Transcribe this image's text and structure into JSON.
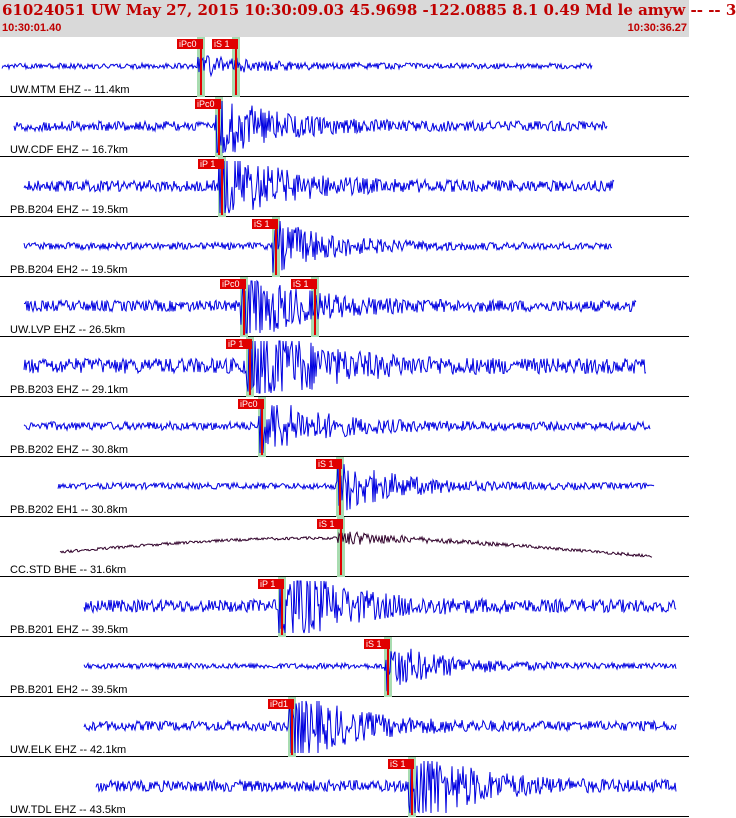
{
  "header": {
    "title": "61024051 UW May 27, 2015 10:30:09.03   45.9698 -122.0885  8.1 0.49 Md le amyw -- --    3",
    "start_time": "10:30:01.40",
    "end_time": "10:30:36.27"
  },
  "colors": {
    "trace": "#0000e0",
    "trace_alt": "#30002a",
    "pick": "#e00000",
    "window": "#a8dcb0",
    "header_bg": "#d9d9d9",
    "header_text": "#c00000"
  },
  "channels": [
    {
      "label": "UW.MTM EHZ -- 11.4km",
      "p_pick": "iPc0",
      "s_pick": "iS 1"
    },
    {
      "label": "UW.CDF EHZ -- 16.7km",
      "p_pick": "iPc0",
      "s_pick": ""
    },
    {
      "label": "PB.B204 EHZ -- 19.5km",
      "p_pick": "iP 1",
      "s_pick": ""
    },
    {
      "label": "PB.B204 EH2 -- 19.5km",
      "p_pick": "",
      "s_pick": "iS 1"
    },
    {
      "label": "UW.LVP EHZ -- 26.5km",
      "p_pick": "iPc0",
      "s_pick": "iS 1"
    },
    {
      "label": "PB.B203 EHZ -- 29.1km",
      "p_pick": "iP 1",
      "s_pick": ""
    },
    {
      "label": "PB.B202 EHZ -- 30.8km",
      "p_pick": "iPc0",
      "s_pick": ""
    },
    {
      "label": "PB.B202 EH1 -- 30.8km",
      "p_pick": "",
      "s_pick": "iS 1"
    },
    {
      "label": "CC.STD BHE -- 31.6km",
      "p_pick": "",
      "s_pick": "iS 1"
    },
    {
      "label": "PB.B201 EHZ -- 39.5km",
      "p_pick": "iP 1",
      "s_pick": ""
    },
    {
      "label": "PB.B201 EH2 -- 39.5km",
      "p_pick": "",
      "s_pick": "iS 1"
    },
    {
      "label": "UW.ELK EHZ -- 42.1km",
      "p_pick": "iPd1",
      "s_pick": ""
    },
    {
      "label": "UW.TDL EHZ -- 43.5km",
      "p_pick": "",
      "s_pick": "iS 1"
    }
  ]
}
